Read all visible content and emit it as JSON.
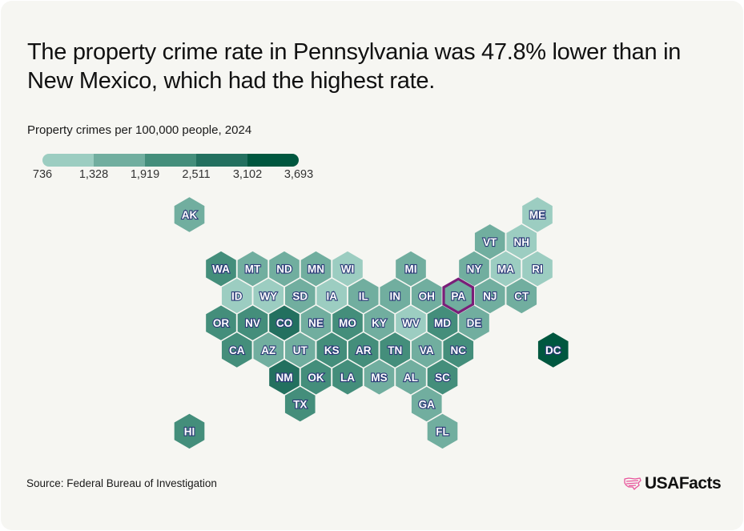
{
  "title": "The property crime rate in Pennsylvania was 47.8% lower than in New Mexico, which had the highest rate.",
  "subtitle": "Property crimes per 100,000 people, 2024",
  "source": "Source: Federal Bureau of Investigation",
  "brand": {
    "name": "USAFacts",
    "icon": "usa-map-flag-icon",
    "icon_color": "#e8559c"
  },
  "colors": {
    "bins": [
      "#9ccdc1",
      "#71ae9f",
      "#448e7b",
      "#23705f",
      "#00573f"
    ],
    "highlight": "#7a1e78",
    "label_outline": "#2b3a78"
  },
  "chart_data": {
    "type": "heatmap",
    "subtype": "hex-tile-map",
    "title": "The property crime rate in Pennsylvania was 47.8% lower than in New Mexico, which had the highest rate.",
    "subtitle": "Property crimes per 100,000 people, 2024",
    "legend": {
      "placement": "top-left",
      "breaks": [
        "736",
        "1,328",
        "1,919",
        "2,511",
        "3,102",
        "3,693"
      ],
      "break_values": [
        736,
        1328,
        1919,
        2511,
        3102,
        3693
      ]
    },
    "highlighted_state": "PA",
    "states": [
      {
        "abbr": "AK",
        "row": 0,
        "col": -1,
        "bin": 1
      },
      {
        "abbr": "ME",
        "row": 0,
        "col": 10,
        "bin": 0
      },
      {
        "abbr": "VT",
        "row": 1,
        "col": 8,
        "bin": 1
      },
      {
        "abbr": "NH",
        "row": 1,
        "col": 9,
        "bin": 0
      },
      {
        "abbr": "WA",
        "row": 2,
        "col": 0,
        "bin": 2
      },
      {
        "abbr": "MT",
        "row": 2,
        "col": 1,
        "bin": 1
      },
      {
        "abbr": "ND",
        "row": 2,
        "col": 2,
        "bin": 1
      },
      {
        "abbr": "MN",
        "row": 2,
        "col": 3,
        "bin": 1
      },
      {
        "abbr": "WI",
        "row": 2,
        "col": 4,
        "bin": 0
      },
      {
        "abbr": "MI",
        "row": 2,
        "col": 6,
        "bin": 1
      },
      {
        "abbr": "NY",
        "row": 2,
        "col": 8,
        "bin": 1
      },
      {
        "abbr": "MA",
        "row": 2,
        "col": 9,
        "bin": 0
      },
      {
        "abbr": "RI",
        "row": 2,
        "col": 10,
        "bin": 0
      },
      {
        "abbr": "ID",
        "row": 3,
        "col": 0,
        "bin": 0
      },
      {
        "abbr": "WY",
        "row": 3,
        "col": 1,
        "bin": 0
      },
      {
        "abbr": "SD",
        "row": 3,
        "col": 2,
        "bin": 1
      },
      {
        "abbr": "IA",
        "row": 3,
        "col": 3,
        "bin": 0
      },
      {
        "abbr": "IL",
        "row": 3,
        "col": 4,
        "bin": 1
      },
      {
        "abbr": "IN",
        "row": 3,
        "col": 5,
        "bin": 1
      },
      {
        "abbr": "OH",
        "row": 3,
        "col": 6,
        "bin": 1
      },
      {
        "abbr": "PA",
        "row": 3,
        "col": 7,
        "bin": 1
      },
      {
        "abbr": "NJ",
        "row": 3,
        "col": 8,
        "bin": 1
      },
      {
        "abbr": "CT",
        "row": 3,
        "col": 9,
        "bin": 1
      },
      {
        "abbr": "OR",
        "row": 4,
        "col": 0,
        "bin": 2
      },
      {
        "abbr": "NV",
        "row": 4,
        "col": 1,
        "bin": 2
      },
      {
        "abbr": "CO",
        "row": 4,
        "col": 2,
        "bin": 3
      },
      {
        "abbr": "NE",
        "row": 4,
        "col": 3,
        "bin": 1
      },
      {
        "abbr": "MO",
        "row": 4,
        "col": 4,
        "bin": 2
      },
      {
        "abbr": "KY",
        "row": 4,
        "col": 5,
        "bin": 1
      },
      {
        "abbr": "WV",
        "row": 4,
        "col": 6,
        "bin": 0
      },
      {
        "abbr": "MD",
        "row": 4,
        "col": 7,
        "bin": 2
      },
      {
        "abbr": "DE",
        "row": 4,
        "col": 8,
        "bin": 1
      },
      {
        "abbr": "CA",
        "row": 5,
        "col": 0,
        "bin": 2
      },
      {
        "abbr": "AZ",
        "row": 5,
        "col": 1,
        "bin": 1
      },
      {
        "abbr": "UT",
        "row": 5,
        "col": 2,
        "bin": 1
      },
      {
        "abbr": "KS",
        "row": 5,
        "col": 3,
        "bin": 2
      },
      {
        "abbr": "AR",
        "row": 5,
        "col": 4,
        "bin": 2
      },
      {
        "abbr": "TN",
        "row": 5,
        "col": 5,
        "bin": 2
      },
      {
        "abbr": "VA",
        "row": 5,
        "col": 6,
        "bin": 1
      },
      {
        "abbr": "NC",
        "row": 5,
        "col": 7,
        "bin": 2
      },
      {
        "abbr": "DC",
        "row": 5,
        "col": 10,
        "bin": 4
      },
      {
        "abbr": "NM",
        "row": 6,
        "col": 2,
        "bin": 3
      },
      {
        "abbr": "OK",
        "row": 6,
        "col": 3,
        "bin": 2
      },
      {
        "abbr": "LA",
        "row": 6,
        "col": 4,
        "bin": 2
      },
      {
        "abbr": "MS",
        "row": 6,
        "col": 5,
        "bin": 1
      },
      {
        "abbr": "AL",
        "row": 6,
        "col": 6,
        "bin": 1
      },
      {
        "abbr": "SC",
        "row": 6,
        "col": 7,
        "bin": 2
      },
      {
        "abbr": "TX",
        "row": 7,
        "col": 2,
        "bin": 2
      },
      {
        "abbr": "GA",
        "row": 7,
        "col": 6,
        "bin": 1
      },
      {
        "abbr": "HI",
        "row": 8,
        "col": -1,
        "bin": 2
      },
      {
        "abbr": "FL",
        "row": 8,
        "col": 7,
        "bin": 1
      }
    ]
  }
}
